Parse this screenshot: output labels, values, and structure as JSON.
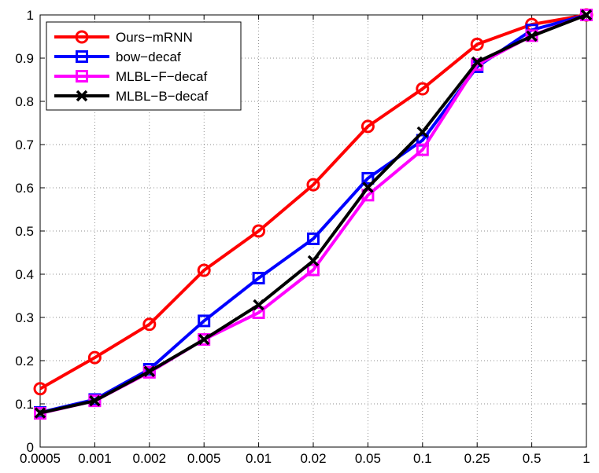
{
  "chart_data": {
    "type": "line",
    "title": "",
    "xlabel": "",
    "ylabel": "",
    "categories": [
      "0.0005",
      "0.001",
      "0.002",
      "0.005",
      "0.01",
      "0.02",
      "0.05",
      "0.1",
      "0.25",
      "0.5",
      "1"
    ],
    "y_ticks": [
      "0",
      "0.1",
      "0.2",
      "0.3",
      "0.4",
      "0.5",
      "0.6",
      "0.7",
      "0.8",
      "0.9",
      "1"
    ],
    "ylim": [
      0,
      1
    ],
    "grid": true,
    "legend_position": "top-left",
    "series": [
      {
        "name": "Ours−mRNN",
        "color": "#ff0000",
        "marker": "circle",
        "values": [
          0.135,
          0.207,
          0.284,
          0.409,
          0.5,
          0.607,
          0.742,
          0.829,
          0.932,
          0.978,
          1.0
        ]
      },
      {
        "name": "bow−decaf",
        "color": "#0000ff",
        "marker": "square",
        "values": [
          0.08,
          0.11,
          0.18,
          0.292,
          0.391,
          0.482,
          0.622,
          0.71,
          0.88,
          0.965,
          1.0
        ]
      },
      {
        "name": "MLBL−F−decaf",
        "color": "#ff00ff",
        "marker": "square",
        "values": [
          0.078,
          0.107,
          0.173,
          0.249,
          0.311,
          0.41,
          0.583,
          0.688,
          0.885,
          0.952,
          1.0
        ]
      },
      {
        "name": "MLBL−B−decaf",
        "color": "#000000",
        "marker": "x",
        "values": [
          0.079,
          0.107,
          0.175,
          0.249,
          0.329,
          0.431,
          0.601,
          0.729,
          0.891,
          0.951,
          1.0
        ]
      }
    ]
  }
}
